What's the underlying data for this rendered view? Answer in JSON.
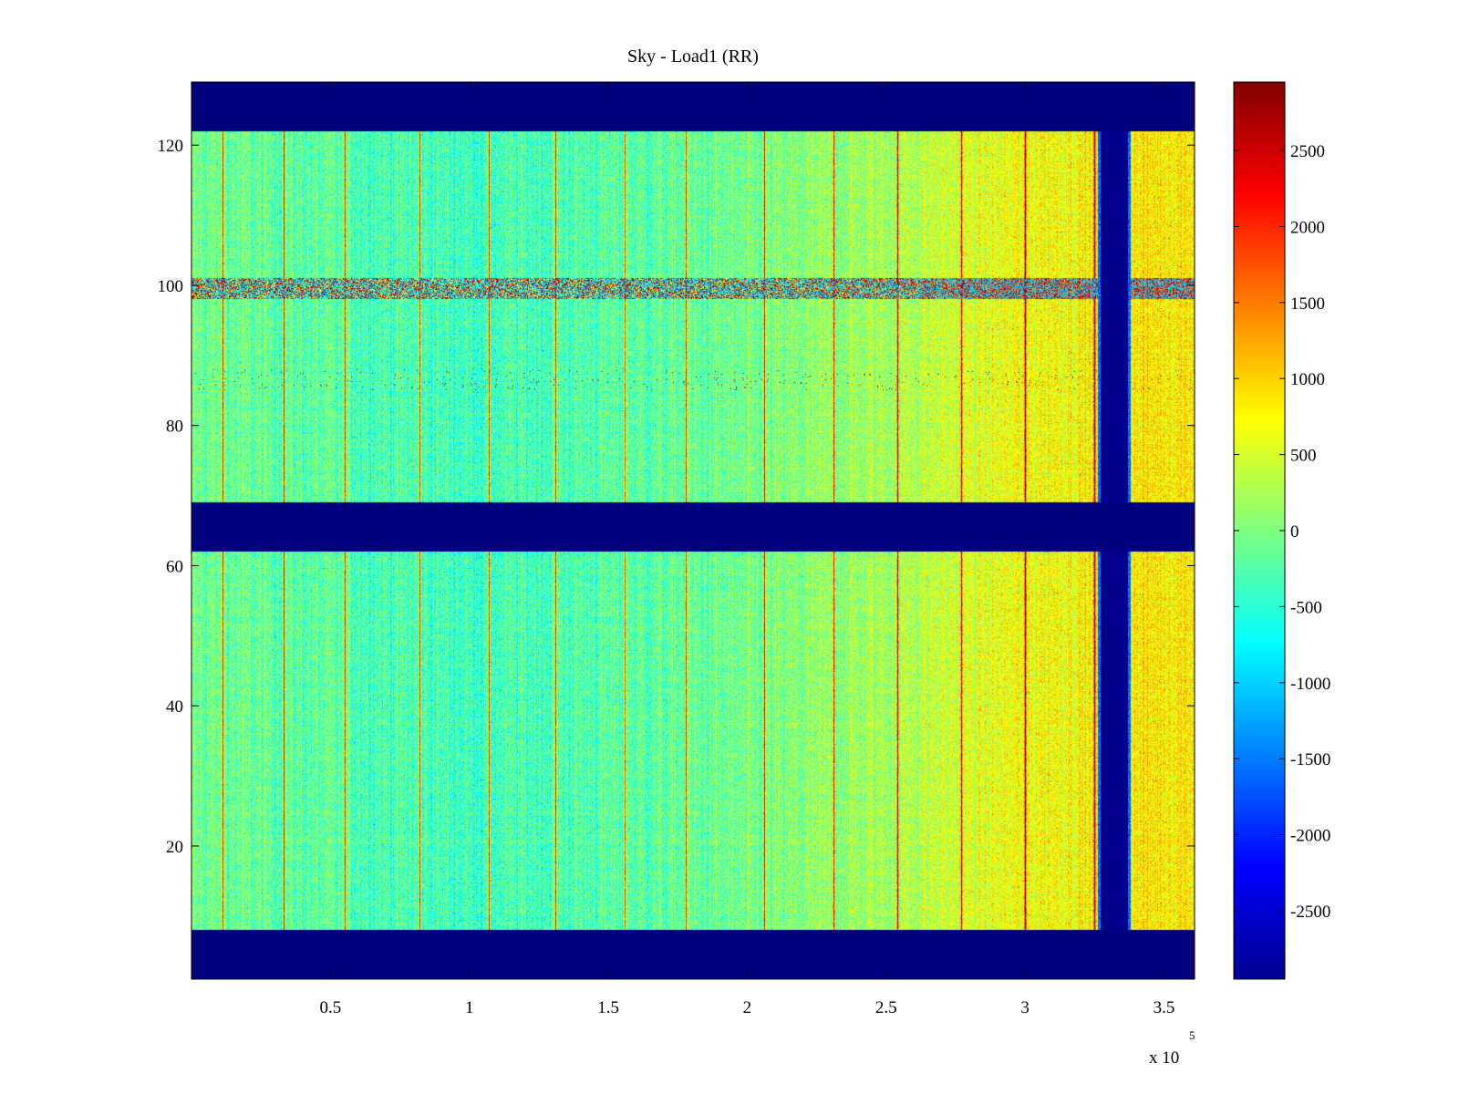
{
  "chart_data": {
    "type": "heatmap",
    "title": "Sky - Load1 (RR)",
    "xlabel": "",
    "ylabel": "",
    "xlim": [
      0,
      361000
    ],
    "ylim": [
      1,
      129
    ],
    "x_ticks": [
      {
        "value": 50000,
        "label": "0.5"
      },
      {
        "value": 100000,
        "label": "1"
      },
      {
        "value": 150000,
        "label": "1.5"
      },
      {
        "value": 200000,
        "label": "2"
      },
      {
        "value": 250000,
        "label": "2.5"
      },
      {
        "value": 300000,
        "label": "3"
      },
      {
        "value": 350000,
        "label": "3.5"
      }
    ],
    "x_exponent": {
      "base": "x 10",
      "power": "5"
    },
    "y_ticks": [
      {
        "value": 20,
        "label": "20"
      },
      {
        "value": 40,
        "label": "40"
      },
      {
        "value": 60,
        "label": "60"
      },
      {
        "value": 80,
        "label": "80"
      },
      {
        "value": 100,
        "label": "100"
      },
      {
        "value": 120,
        "label": "120"
      }
    ],
    "colorbar": {
      "colormap": "jet",
      "clim": [
        -2950,
        2950
      ],
      "ticks": [
        {
          "value": 2500,
          "label": "2500"
        },
        {
          "value": 2000,
          "label": "2000"
        },
        {
          "value": 1500,
          "label": "1500"
        },
        {
          "value": 1000,
          "label": "1000"
        },
        {
          "value": 500,
          "label": "500"
        },
        {
          "value": 0,
          "label": "0"
        },
        {
          "value": -500,
          "label": "-500"
        },
        {
          "value": -1000,
          "label": "-1000"
        },
        {
          "value": -1500,
          "label": "-1500"
        },
        {
          "value": -2000,
          "label": "-2000"
        },
        {
          "value": -2500,
          "label": "-2500"
        }
      ]
    },
    "masked_value": -2950,
    "masked_channel_ranges": [
      [
        1,
        8
      ],
      [
        62,
        69
      ],
      [
        122,
        129
      ]
    ],
    "masked_time_range": [
      326000,
      338000
    ],
    "background_trend": {
      "x": [
        0,
        100000,
        200000,
        250000,
        300000,
        361000
      ],
      "value": [
        -80,
        -350,
        -100,
        250,
        700,
        900
      ]
    },
    "spike_lines_x": [
      11000,
      33000,
      55000,
      82000,
      107000,
      131000,
      156000,
      178000,
      206000,
      231000,
      254000,
      277000,
      300000,
      325000
    ],
    "rfi_channel_band": [
      98,
      101
    ],
    "rfi_channel_dashes": [
      85,
      88
    ]
  }
}
